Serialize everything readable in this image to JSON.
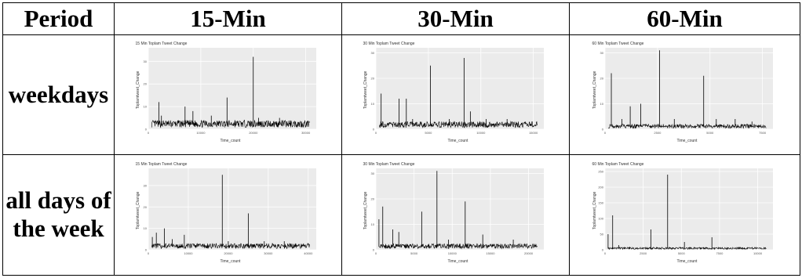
{
  "table": {
    "headers": [
      "Period",
      "15-Min",
      "30-Min",
      "60-Min"
    ],
    "rows": [
      {
        "label_lines": [
          "weekdays"
        ]
      },
      {
        "label_lines": [
          "all days of",
          "the week"
        ]
      }
    ]
  },
  "chart_data": [
    {
      "type": "line",
      "title": "15 Min Toplam Tweet Change",
      "xlabel": "Time_count",
      "ylabel": "Toplamtweet_Change",
      "xlim": [
        0,
        32000
      ],
      "ylim": [
        0,
        36
      ],
      "xticks": [
        "0",
        "10000",
        "20000",
        "30000"
      ],
      "yticks": [
        "0",
        "10",
        "20",
        "30"
      ],
      "spikes": [
        [
          2000,
          12
        ],
        [
          2500,
          6
        ],
        [
          7000,
          10
        ],
        [
          8500,
          8
        ],
        [
          12000,
          6
        ],
        [
          15000,
          14
        ],
        [
          16500,
          4
        ],
        [
          20000,
          32
        ],
        [
          21000,
          5
        ],
        [
          25000,
          5
        ]
      ],
      "baseline": 2
    },
    {
      "type": "line",
      "title": "30 Min Toplam Tweet Change",
      "xlabel": "Time_count",
      "ylabel": "Toplamtweet_Change",
      "xlim": [
        0,
        16000
      ],
      "ylim": [
        0,
        32
      ],
      "xticks": [
        "0",
        "5000",
        "10000",
        "15000"
      ],
      "yticks": [
        "0",
        "10",
        "20",
        "30"
      ],
      "spikes": [
        [
          500,
          14
        ],
        [
          2200,
          12
        ],
        [
          2900,
          12
        ],
        [
          3500,
          4
        ],
        [
          5200,
          25
        ],
        [
          7000,
          4
        ],
        [
          8400,
          28
        ],
        [
          9000,
          7
        ],
        [
          10500,
          4
        ],
        [
          12500,
          4
        ]
      ],
      "baseline": 1.5
    },
    {
      "type": "line",
      "title": "60 Min Toplam Tweet Change",
      "xlabel": "Time_count",
      "ylabel": "Toplamtweet_Change",
      "xlim": [
        0,
        8000
      ],
      "ylim": [
        0,
        32
      ],
      "xticks": [
        "0",
        "2500",
        "5000",
        "7500"
      ],
      "yticks": [
        "0",
        "10",
        "20",
        "30"
      ],
      "spikes": [
        [
          300,
          22
        ],
        [
          800,
          4
        ],
        [
          1200,
          9
        ],
        [
          1700,
          10
        ],
        [
          2600,
          31
        ],
        [
          3300,
          4
        ],
        [
          4700,
          21
        ],
        [
          5300,
          4
        ],
        [
          6200,
          4
        ],
        [
          7000,
          3
        ]
      ],
      "baseline": 1
    },
    {
      "type": "line",
      "title": "15 Min Toplam Tweet Change",
      "xlabel": "Time_count",
      "ylabel": "Toplamtweet_Change",
      "xlim": [
        0,
        42000
      ],
      "ylim": [
        0,
        38
      ],
      "xticks": [
        "0",
        "10000",
        "20000",
        "30000",
        "40000"
      ],
      "yticks": [
        "0",
        "10",
        "20",
        "30"
      ],
      "spikes": [
        [
          1000,
          6
        ],
        [
          2000,
          8
        ],
        [
          4000,
          10
        ],
        [
          6000,
          5
        ],
        [
          9000,
          7
        ],
        [
          18500,
          35
        ],
        [
          20000,
          4
        ],
        [
          25000,
          17
        ],
        [
          29000,
          4
        ],
        [
          34000,
          4
        ]
      ],
      "baseline": 1.5
    },
    {
      "type": "line",
      "title": "30 Min Toplam Tweet Change",
      "xlabel": "Time_count",
      "ylabel": "Toplamtweet_Change",
      "xlim": [
        0,
        22000
      ],
      "ylim": [
        0,
        32
      ],
      "xticks": [
        "0",
        "5000",
        "10000",
        "15000",
        "20000"
      ],
      "yticks": [
        "0",
        "10",
        "20",
        "30"
      ],
      "spikes": [
        [
          400,
          12
        ],
        [
          900,
          17
        ],
        [
          2200,
          8
        ],
        [
          3000,
          7
        ],
        [
          6000,
          15
        ],
        [
          8000,
          31
        ],
        [
          9500,
          4
        ],
        [
          11700,
          19
        ],
        [
          14000,
          6
        ],
        [
          18000,
          4
        ]
      ],
      "baseline": 1.2
    },
    {
      "type": "line",
      "title": "60 Min Toplam Tweet Change",
      "xlabel": "Time_count",
      "ylabel": "Toplamtweet_Change",
      "xlim": [
        0,
        11000
      ],
      "ylim": [
        0,
        260
      ],
      "xticks": [
        "0",
        "2500",
        "5000",
        "7500",
        "10000"
      ],
      "yticks": [
        "0",
        "50",
        "100",
        "150",
        "200",
        "250"
      ],
      "spikes": [
        [
          200,
          50
        ],
        [
          500,
          110
        ],
        [
          900,
          15
        ],
        [
          1600,
          10
        ],
        [
          3000,
          65
        ],
        [
          4100,
          240
        ],
        [
          5200,
          25
        ],
        [
          7000,
          40
        ],
        [
          8000,
          8
        ],
        [
          9500,
          6
        ]
      ],
      "baseline": 4
    }
  ]
}
